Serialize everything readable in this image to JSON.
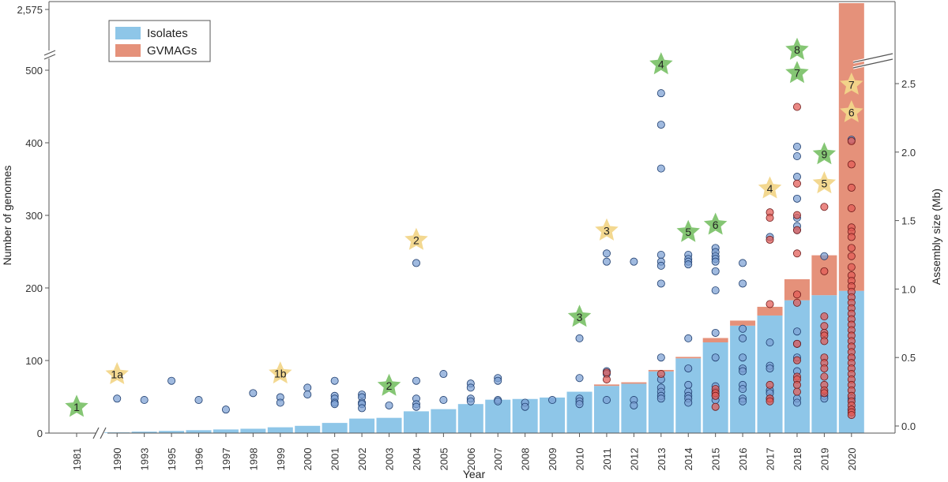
{
  "chart_data": {
    "type": "bar",
    "xlabel": "Year",
    "ylabel_left": "Number of genomes",
    "ylabel_right": "Assembly size (Mb)",
    "left_axis_ticks": [
      0,
      100,
      200,
      300,
      400,
      500
    ],
    "left_axis_break_label": "2,575",
    "right_axis_ticks": [
      "0.0",
      "0.5",
      "1.0",
      "1.5",
      "2.0",
      "2.5"
    ],
    "legend": [
      {
        "name": "Isolates",
        "color": "#8ec6e8"
      },
      {
        "name": "GVMAGs",
        "color": "#e5917a"
      }
    ],
    "colors": {
      "isolates": "#8ec6e8",
      "gvmags": "#e5917a",
      "isolate_dot": "#7b9fd2",
      "gvmag_dot": "#e25a55",
      "star_green": "#7ec36d",
      "star_yellow": "#f2d68a"
    },
    "categories": [
      "1981",
      "1990",
      "1993",
      "1995",
      "1996",
      "1997",
      "1998",
      "1999",
      "2000",
      "2001",
      "2002",
      "2003",
      "2004",
      "2005",
      "2006",
      "2007",
      "2008",
      "2009",
      "2010",
      "2011",
      "2012",
      "2013",
      "2014",
      "2015",
      "2016",
      "2017",
      "2018",
      "2019",
      "2020"
    ],
    "series": [
      {
        "name": "Isolates",
        "values": [
          0,
          1,
          2,
          3,
          4,
          5,
          6,
          8,
          10,
          14,
          20,
          21,
          30,
          33,
          40,
          46,
          47,
          49,
          57,
          65,
          68,
          85,
          103,
          125,
          148,
          162,
          183,
          190,
          196
        ]
      },
      {
        "name": "GVMAGs",
        "values": [
          0,
          0,
          0,
          0,
          0,
          0,
          0,
          0,
          0,
          0,
          0,
          0,
          0,
          0,
          0,
          0,
          0,
          0,
          0,
          2,
          2,
          2,
          2,
          6,
          7,
          12,
          29,
          55,
          2379
        ]
      }
    ],
    "gvmag_total_2020": 2575,
    "isolate_assembly_sizes_mb": [
      {
        "year": "1990",
        "values": [
          0.2
        ]
      },
      {
        "year": "1993",
        "values": [
          0.19
        ]
      },
      {
        "year": "1995",
        "values": [
          0.33
        ]
      },
      {
        "year": "1996",
        "values": [
          0.19
        ]
      },
      {
        "year": "1997",
        "values": [
          0.12
        ]
      },
      {
        "year": "1998",
        "values": [
          0.24
        ]
      },
      {
        "year": "1999",
        "values": [
          0.21,
          0.17
        ]
      },
      {
        "year": "2000",
        "values": [
          0.28,
          0.23
        ]
      },
      {
        "year": "2001",
        "values": [
          0.33,
          0.22,
          0.2,
          0.17,
          0.16
        ]
      },
      {
        "year": "2002",
        "values": [
          0.23,
          0.21,
          0.17,
          0.16,
          0.13
        ]
      },
      {
        "year": "2003",
        "values": [
          0.15
        ]
      },
      {
        "year": "2004",
        "values": [
          1.19,
          0.33,
          0.2,
          0.16,
          0.14
        ]
      },
      {
        "year": "2005",
        "values": [
          0.38,
          0.19
        ]
      },
      {
        "year": "2006",
        "values": [
          0.31,
          0.28,
          0.2,
          0.18
        ]
      },
      {
        "year": "2007",
        "values": [
          0.35,
          0.33,
          0.19,
          0.18
        ]
      },
      {
        "year": "2008",
        "values": [
          0.17,
          0.14
        ]
      },
      {
        "year": "2009",
        "values": [
          0.19
        ]
      },
      {
        "year": "2010",
        "values": [
          0.64,
          0.35,
          0.2,
          0.18,
          0.16
        ]
      },
      {
        "year": "2011",
        "values": [
          1.26,
          1.2,
          0.4,
          0.38,
          0.19
        ]
      },
      {
        "year": "2012",
        "values": [
          1.2,
          0.19,
          0.15
        ]
      },
      {
        "year": "2013",
        "values": [
          2.43,
          2.2,
          1.88,
          1.25,
          1.2,
          1.17,
          1.04,
          0.5,
          0.34,
          0.28,
          0.25,
          0.22,
          0.2
        ]
      },
      {
        "year": "2014",
        "values": [
          1.25,
          1.22,
          1.2,
          1.18,
          0.64,
          0.42,
          0.3,
          0.25,
          0.22,
          0.2,
          0.17
        ]
      },
      {
        "year": "2015",
        "values": [
          1.3,
          1.27,
          1.24,
          1.22,
          1.2,
          1.13,
          0.99,
          0.68,
          0.5,
          0.29,
          0.25,
          0.22,
          0.19
        ]
      },
      {
        "year": "2016",
        "values": [
          1.19,
          1.04,
          0.71,
          0.64,
          0.5,
          0.42,
          0.4,
          0.3,
          0.27,
          0.2,
          0.18
        ]
      },
      {
        "year": "2017",
        "values": [
          1.38,
          0.61,
          0.44,
          0.42,
          0.26,
          0.24,
          0.2
        ]
      },
      {
        "year": "2018",
        "values": [
          2.04,
          1.97,
          1.82,
          1.66,
          1.52,
          1.46,
          1.43,
          0.69,
          0.6,
          0.5,
          0.4,
          0.2,
          0.17
        ]
      },
      {
        "year": "2019",
        "values": [
          1.24,
          0.22,
          0.2
        ]
      },
      {
        "year": "2020",
        "values": [
          2.09,
          0.5,
          0.2,
          0.12
        ]
      }
    ],
    "gvmag_assembly_sizes_mb": [
      {
        "year": "2011",
        "values": [
          0.39,
          0.34
        ]
      },
      {
        "year": "2013",
        "values": [
          0.38
        ]
      },
      {
        "year": "2015",
        "values": [
          0.27,
          0.24,
          0.22,
          0.14
        ]
      },
      {
        "year": "2017",
        "values": [
          1.56,
          1.52,
          1.36,
          0.89,
          0.3,
          0.2,
          0.18
        ]
      },
      {
        "year": "2018",
        "values": [
          2.33,
          1.77,
          1.54,
          1.43,
          1.26,
          0.96,
          0.9,
          0.6,
          0.48,
          0.36,
          0.34,
          0.3,
          0.25
        ]
      },
      {
        "year": "2019",
        "values": [
          1.6,
          1.13,
          0.8,
          0.73,
          0.68,
          0.66,
          0.62,
          0.5,
          0.46,
          0.42,
          0.36,
          0.3,
          0.26,
          0.24
        ]
      },
      {
        "year": "2020",
        "values": [
          2.08,
          1.91,
          1.74,
          1.59,
          1.45,
          1.42,
          1.38,
          1.3,
          1.24,
          1.16,
          1.1,
          1.06,
          1.02,
          0.98,
          0.94,
          0.9,
          0.86,
          0.82,
          0.78,
          0.74,
          0.7,
          0.66,
          0.62,
          0.58,
          0.54,
          0.5,
          0.46,
          0.42,
          0.38,
          0.34,
          0.3,
          0.26,
          0.22,
          0.18,
          0.15,
          0.12,
          0.1,
          0.08
        ]
      }
    ],
    "milestones_green": [
      {
        "year": "1981",
        "label": "1",
        "value_genomes": 36
      },
      {
        "year": "2003",
        "label": "2",
        "value_genomes": 65
      },
      {
        "year": "2010",
        "label": "3",
        "value_genomes": 160
      },
      {
        "year": "2013",
        "label": "4",
        "value_genomes": 508
      },
      {
        "year": "2014",
        "label": "5",
        "value_genomes": 277
      },
      {
        "year": "2015",
        "label": "6",
        "value_genomes": 287
      },
      {
        "year": "2018",
        "label": "7",
        "value_genomes": 496
      },
      {
        "year": "2018",
        "label": "8",
        "value_genomes": 528
      },
      {
        "year": "2019",
        "label": "9",
        "value_genomes": 384
      }
    ],
    "milestones_yellow": [
      {
        "year": "1990",
        "label": "1a",
        "value_genomes": 81
      },
      {
        "year": "1999",
        "label": "1b",
        "value_genomes": 82
      },
      {
        "year": "2004",
        "label": "2",
        "value_genomes": 266
      },
      {
        "year": "2011",
        "label": "3",
        "value_genomes": 279
      },
      {
        "year": "2017",
        "label": "4",
        "value_genomes": 337
      },
      {
        "year": "2019",
        "label": "5",
        "value_genomes": 344
      },
      {
        "year": "2020",
        "label": "6",
        "value_genomes": 442
      },
      {
        "year": "2020",
        "label": "7",
        "value_genomes": 480
      }
    ]
  }
}
